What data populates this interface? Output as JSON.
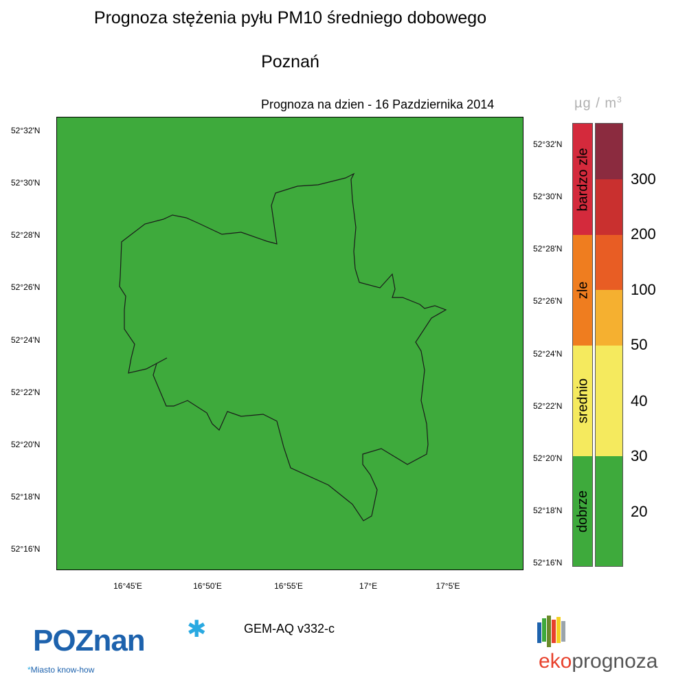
{
  "header": {
    "title": "Prognoza stężenia pyłu PM10 średniego dobowego",
    "city": "Poznań",
    "forecast_date": "Prognoza na dzien -  16 Pazdziernika 2014",
    "units": "µg / m",
    "units_exp": "3"
  },
  "map": {
    "fill_color": "#3eaa3c",
    "outline_color": "#1a1a1a",
    "lat_labels_left": [
      "52°32'N",
      "52°30'N",
      "52°28'N",
      "52°26'N",
      "52°24'N",
      "52°22'N",
      "52°20'N",
      "52°18'N",
      "52°16'N"
    ],
    "lat_labels_right": [
      "52°32'N",
      "52°30'N",
      "52°28'N",
      "52°26'N",
      "52°24'N",
      "52°22'N",
      "52°20'N",
      "52°18'N",
      "52°16'N"
    ],
    "lon_labels": [
      "16°45'E",
      "16°50'E",
      "16°55'E",
      "17°E",
      "17°5'E"
    ]
  },
  "legend": {
    "categories": [
      {
        "label": "bardzo zle",
        "color": "#d42a3c"
      },
      {
        "label": "zle",
        "color": "#ef7d1f"
      },
      {
        "label": "srednio",
        "color": "#f5ea5e"
      },
      {
        "label": "dobrze",
        "color": "#3eaa3c"
      }
    ],
    "scale_colors": [
      "#8b2b3f",
      "#c9302f",
      "#e85d24",
      "#f5b030",
      "#f5ea5e",
      "#3eaa3c"
    ],
    "ticks": [
      "300",
      "200",
      "100",
      "50",
      "40",
      "30",
      "20"
    ]
  },
  "footer": {
    "model": "GEM-AQ v332-c",
    "logo_left": "POZnan",
    "logo_left_sub": "Miasto know-how",
    "logo_right_a": "eko",
    "logo_right_b": "prognoza"
  }
}
